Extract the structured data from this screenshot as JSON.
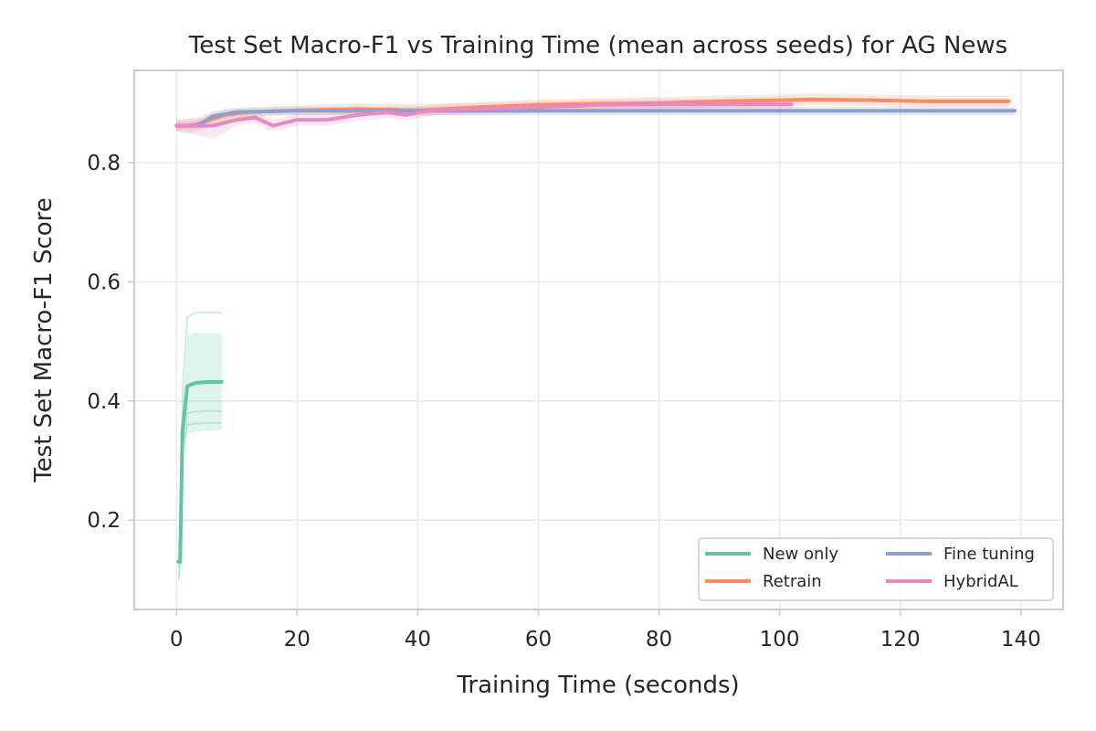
{
  "chart_data": {
    "type": "line",
    "title": "Test Set Macro-F1 vs Training Time (mean across seeds) for AG News",
    "xlabel": "Training Time (seconds)",
    "ylabel": "Test Set Macro-F1 Score",
    "xlim": [
      -7,
      147
    ],
    "ylim": [
      0.05,
      0.955
    ],
    "xticks": [
      0,
      20,
      40,
      60,
      80,
      100,
      120,
      140
    ],
    "yticks": [
      0.2,
      0.4,
      0.6,
      0.8
    ],
    "grid": true,
    "legend": {
      "position": "lower-right",
      "ncol": 2
    },
    "series": [
      {
        "name": "New only",
        "color": "#66c2a5",
        "x": [
          0.3,
          0.6,
          1.0,
          1.8,
          3.0,
          5.0,
          7.5
        ],
        "y": [
          0.13,
          0.13,
          0.35,
          0.425,
          0.43,
          0.432,
          0.432
        ],
        "band_low": [
          0.1,
          0.1,
          0.3,
          0.345,
          0.348,
          0.35,
          0.35
        ],
        "band_high": [
          0.16,
          0.16,
          0.4,
          0.51,
          0.514,
          0.514,
          0.514
        ],
        "seeds": [
          {
            "x": [
              0.3,
              0.6,
              1.0,
              1.8,
              3.0,
              5.0,
              7.5
            ],
            "y": [
              0.1,
              0.12,
              0.42,
              0.54,
              0.548,
              0.548,
              0.548
            ]
          },
          {
            "x": [
              0.3,
              0.6,
              1.0,
              1.8,
              3.0,
              5.0,
              7.5
            ],
            "y": [
              0.12,
              0.14,
              0.33,
              0.38,
              0.382,
              0.383,
              0.383
            ]
          },
          {
            "x": [
              0.3,
              0.6,
              1.0,
              1.8,
              3.0,
              5.0,
              7.5
            ],
            "y": [
              0.14,
              0.15,
              0.32,
              0.36,
              0.362,
              0.363,
              0.363
            ]
          }
        ]
      },
      {
        "name": "Retrain",
        "color": "#fc8d62",
        "x": [
          0,
          3,
          5,
          8,
          12,
          20,
          30,
          40,
          50,
          60,
          70,
          80,
          90,
          100,
          105,
          115,
          125,
          138
        ],
        "y": [
          0.862,
          0.862,
          0.87,
          0.88,
          0.885,
          0.888,
          0.89,
          0.888,
          0.893,
          0.897,
          0.899,
          0.9,
          0.903,
          0.905,
          0.906,
          0.905,
          0.903,
          0.903
        ],
        "band_low": [
          0.852,
          0.85,
          0.858,
          0.87,
          0.877,
          0.88,
          0.88,
          0.878,
          0.884,
          0.888,
          0.89,
          0.89,
          0.893,
          0.895,
          0.896,
          0.895,
          0.893,
          0.893
        ],
        "band_high": [
          0.872,
          0.874,
          0.882,
          0.89,
          0.893,
          0.896,
          0.9,
          0.898,
          0.902,
          0.906,
          0.908,
          0.91,
          0.913,
          0.915,
          0.916,
          0.915,
          0.913,
          0.913
        ]
      },
      {
        "name": "Fine tuning",
        "color": "#8da0cb",
        "x": [
          0,
          2,
          4,
          6,
          10,
          20,
          30,
          40,
          50,
          60,
          80,
          100,
          120,
          139
        ],
        "y": [
          0.862,
          0.862,
          0.865,
          0.878,
          0.885,
          0.887,
          0.887,
          0.887,
          0.887,
          0.887,
          0.887,
          0.887,
          0.887,
          0.887
        ],
        "band_low": [
          0.855,
          0.855,
          0.858,
          0.87,
          0.878,
          0.88,
          0.88,
          0.88,
          0.88,
          0.88,
          0.88,
          0.88,
          0.88,
          0.88
        ],
        "band_high": [
          0.869,
          0.869,
          0.872,
          0.886,
          0.892,
          0.894,
          0.894,
          0.894,
          0.894,
          0.894,
          0.894,
          0.894,
          0.894,
          0.894
        ]
      },
      {
        "name": "HybridAL",
        "color": "#e78ac3",
        "x": [
          0,
          3,
          6,
          10,
          13,
          16,
          20,
          25,
          30,
          35,
          38,
          42,
          50,
          60,
          70,
          80,
          90,
          102
        ],
        "y": [
          0.862,
          0.862,
          0.862,
          0.872,
          0.876,
          0.862,
          0.872,
          0.872,
          0.88,
          0.885,
          0.88,
          0.888,
          0.89,
          0.893,
          0.897,
          0.898,
          0.898,
          0.898
        ],
        "band_low": [
          0.852,
          0.848,
          0.84,
          0.862,
          0.866,
          0.852,
          0.862,
          0.862,
          0.87,
          0.875,
          0.87,
          0.878,
          0.88,
          0.883,
          0.888,
          0.889,
          0.889,
          0.889
        ],
        "band_high": [
          0.872,
          0.874,
          0.876,
          0.882,
          0.886,
          0.872,
          0.882,
          0.882,
          0.89,
          0.895,
          0.89,
          0.898,
          0.9,
          0.903,
          0.906,
          0.907,
          0.907,
          0.907
        ]
      }
    ]
  }
}
